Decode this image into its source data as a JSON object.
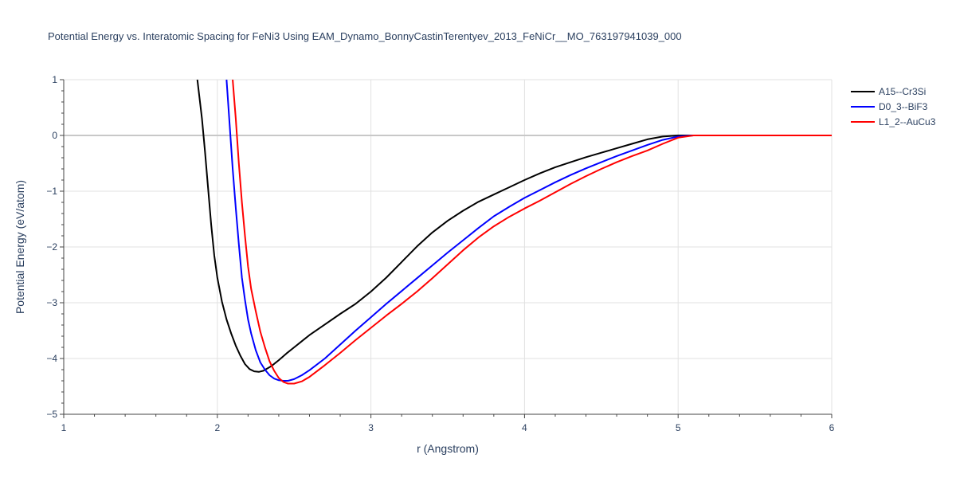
{
  "chart_data": {
    "type": "line",
    "title": "Potential Energy vs. Interatomic Spacing for FeNi3 Using EAM_Dynamo_BonnyCastinTerentyev_2013_FeNiCr__MO_763197941039_000",
    "xlabel": "r (Angstrom)",
    "ylabel": "Potential Energy (eV/atom)",
    "xlim": [
      1,
      6
    ],
    "ylim": [
      -5,
      1
    ],
    "x_ticks": [
      1,
      2,
      3,
      4,
      5,
      6
    ],
    "x_tick_labels": [
      "1",
      "2",
      "3",
      "4",
      "5",
      "6"
    ],
    "y_ticks": [
      1,
      0,
      -1,
      -2,
      -3,
      -4,
      -5
    ],
    "y_tick_labels": [
      "1",
      "0",
      "−1",
      "−2",
      "−3",
      "−4",
      "−5"
    ],
    "grid": true,
    "legend_position": "top-right",
    "series": [
      {
        "name": "A15--Cr3Si",
        "color": "#000000",
        "x": [
          1.87,
          1.9,
          1.92,
          1.94,
          1.96,
          1.98,
          2.0,
          2.03,
          2.06,
          2.09,
          2.12,
          2.15,
          2.18,
          2.21,
          2.24,
          2.27,
          2.3,
          2.35,
          2.4,
          2.45,
          2.5,
          2.55,
          2.6,
          2.7,
          2.8,
          2.9,
          3.0,
          3.1,
          3.2,
          3.3,
          3.4,
          3.5,
          3.6,
          3.7,
          3.8,
          3.9,
          4.0,
          4.1,
          4.2,
          4.3,
          4.4,
          4.5,
          4.6,
          4.7,
          4.8,
          4.9,
          5.0,
          5.1,
          5.2,
          5.4,
          5.6,
          5.8,
          6.0
        ],
        "y": [
          1.0,
          0.3,
          -0.3,
          -0.95,
          -1.6,
          -2.15,
          -2.55,
          -2.98,
          -3.3,
          -3.55,
          -3.77,
          -3.95,
          -4.1,
          -4.19,
          -4.23,
          -4.24,
          -4.22,
          -4.14,
          -4.03,
          -3.91,
          -3.8,
          -3.69,
          -3.58,
          -3.39,
          -3.2,
          -3.02,
          -2.8,
          -2.55,
          -2.27,
          -1.99,
          -1.74,
          -1.53,
          -1.35,
          -1.19,
          -1.06,
          -0.93,
          -0.8,
          -0.68,
          -0.57,
          -0.48,
          -0.39,
          -0.31,
          -0.23,
          -0.15,
          -0.07,
          -0.02,
          0.0,
          0.0,
          0.0,
          0.0,
          0.0,
          0.0,
          0.0
        ]
      },
      {
        "name": "D0_3--BiF3",
        "color": "#0000ff",
        "x": [
          2.06,
          2.08,
          2.1,
          2.12,
          2.14,
          2.16,
          2.18,
          2.2,
          2.22,
          2.25,
          2.28,
          2.31,
          2.34,
          2.37,
          2.4,
          2.43,
          2.46,
          2.5,
          2.55,
          2.6,
          2.7,
          2.8,
          2.9,
          3.0,
          3.1,
          3.2,
          3.3,
          3.4,
          3.5,
          3.6,
          3.7,
          3.8,
          3.9,
          4.0,
          4.1,
          4.2,
          4.3,
          4.4,
          4.5,
          4.6,
          4.7,
          4.8,
          4.9,
          5.0,
          5.1,
          5.2,
          5.4,
          5.6,
          5.8,
          6.0
        ],
        "y": [
          1.0,
          0.2,
          -0.6,
          -1.3,
          -1.95,
          -2.55,
          -2.95,
          -3.3,
          -3.55,
          -3.85,
          -4.07,
          -4.2,
          -4.3,
          -4.36,
          -4.39,
          -4.4,
          -4.4,
          -4.37,
          -4.3,
          -4.21,
          -4.0,
          -3.75,
          -3.5,
          -3.26,
          -3.02,
          -2.79,
          -2.56,
          -2.33,
          -2.1,
          -1.88,
          -1.66,
          -1.45,
          -1.28,
          -1.12,
          -0.98,
          -0.84,
          -0.71,
          -0.59,
          -0.48,
          -0.37,
          -0.27,
          -0.17,
          -0.08,
          -0.02,
          0.0,
          0.0,
          0.0,
          0.0,
          0.0,
          0.0
        ]
      },
      {
        "name": "L1_2--AuCu3",
        "color": "#ff0000",
        "x": [
          2.1,
          2.12,
          2.14,
          2.16,
          2.18,
          2.2,
          2.22,
          2.25,
          2.28,
          2.31,
          2.34,
          2.37,
          2.4,
          2.43,
          2.46,
          2.5,
          2.55,
          2.6,
          2.7,
          2.8,
          2.9,
          3.0,
          3.1,
          3.2,
          3.3,
          3.4,
          3.5,
          3.6,
          3.7,
          3.8,
          3.9,
          4.0,
          4.1,
          4.2,
          4.3,
          4.4,
          4.5,
          4.6,
          4.7,
          4.8,
          4.9,
          5.0,
          5.1,
          5.2,
          5.4,
          5.6,
          5.8,
          6.0
        ],
        "y": [
          1.0,
          0.3,
          -0.5,
          -1.2,
          -1.8,
          -2.35,
          -2.75,
          -3.15,
          -3.52,
          -3.8,
          -4.05,
          -4.22,
          -4.35,
          -4.42,
          -4.45,
          -4.45,
          -4.41,
          -4.33,
          -4.12,
          -3.9,
          -3.67,
          -3.45,
          -3.23,
          -3.02,
          -2.8,
          -2.56,
          -2.31,
          -2.06,
          -1.83,
          -1.63,
          -1.46,
          -1.31,
          -1.17,
          -1.02,
          -0.87,
          -0.73,
          -0.6,
          -0.48,
          -0.37,
          -0.27,
          -0.15,
          -0.04,
          0.0,
          0.0,
          0.0,
          0.0,
          0.0,
          0.0
        ]
      }
    ]
  }
}
